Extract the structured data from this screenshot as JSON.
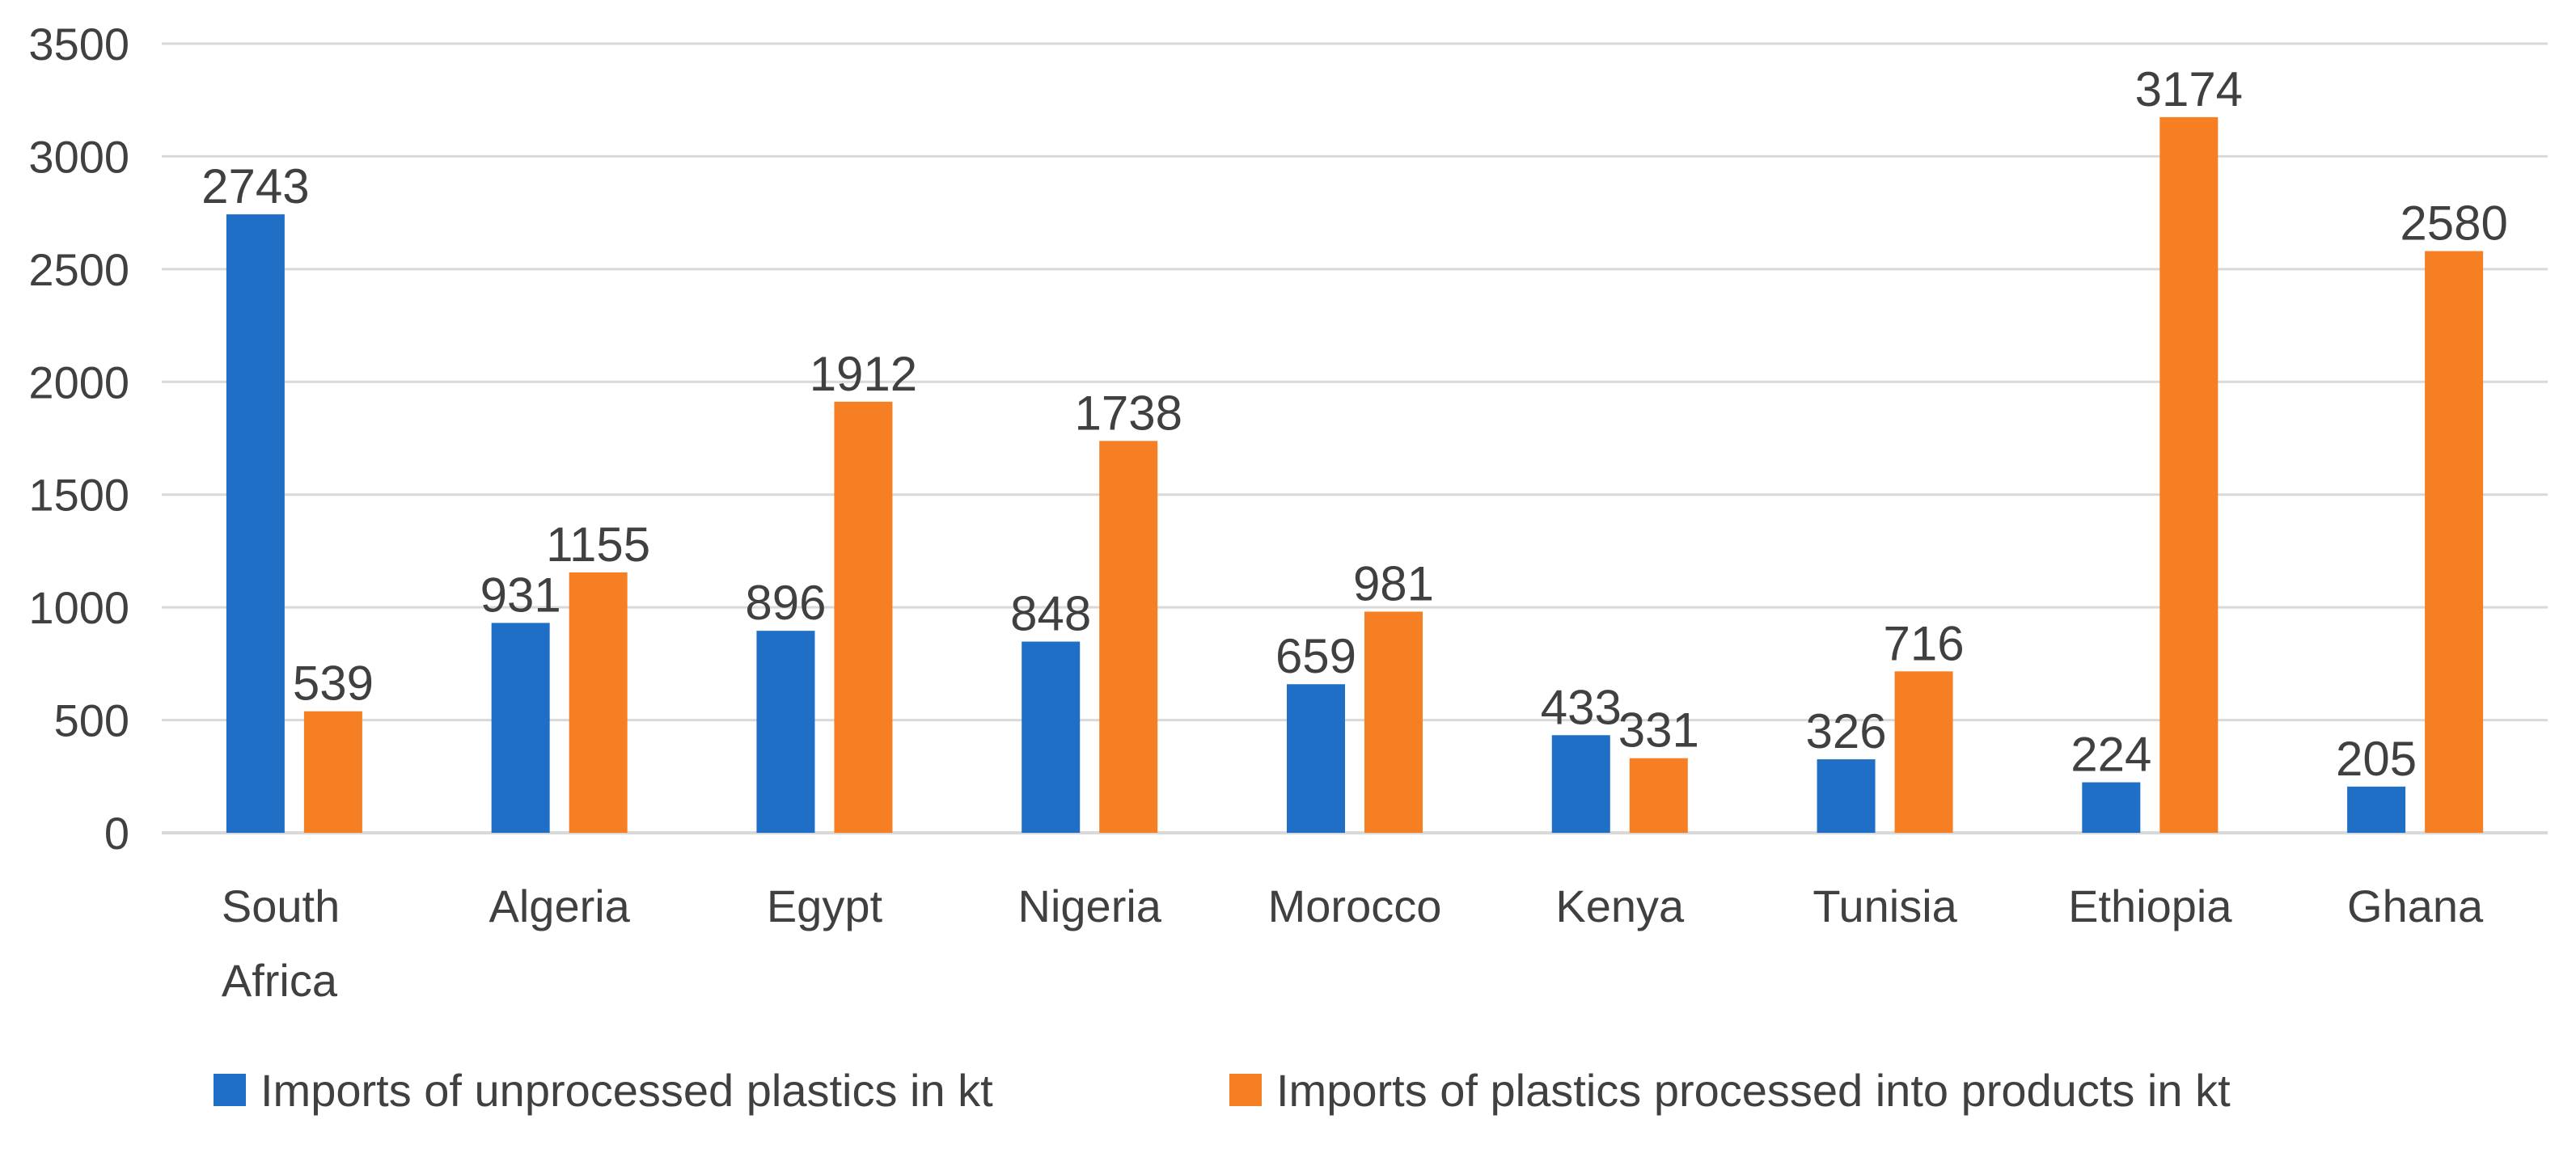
{
  "chart_data": {
    "type": "bar",
    "title": "",
    "xlabel": "",
    "ylabel": "",
    "ylim": [
      0,
      3500
    ],
    "yticks": [
      0,
      500,
      1000,
      1500,
      2000,
      2500,
      3000,
      3500
    ],
    "ytick_labels": [
      "0",
      "500",
      "1000",
      "1500",
      "2000",
      "2500",
      "3000",
      "3500"
    ],
    "grid": true,
    "legend_position": "bottom",
    "categories": [
      [
        "South",
        "Africa"
      ],
      [
        "Algeria"
      ],
      [
        "Egypt"
      ],
      [
        "Nigeria"
      ],
      [
        "Morocco"
      ],
      [
        "Kenya"
      ],
      [
        "Tunisia"
      ],
      [
        "Ethiopia"
      ],
      [
        "Ghana"
      ]
    ],
    "series": [
      {
        "name": "Imports of unprocessed plastics in kt",
        "color": "#1f6fc6",
        "values": [
          2743,
          931,
          896,
          848,
          659,
          433,
          326,
          224,
          205
        ]
      },
      {
        "name": "Imports of plastics processed into products in kt",
        "color": "#f57f22",
        "values": [
          539,
          1155,
          1912,
          1738,
          981,
          331,
          716,
          3174,
          2580
        ]
      }
    ]
  }
}
